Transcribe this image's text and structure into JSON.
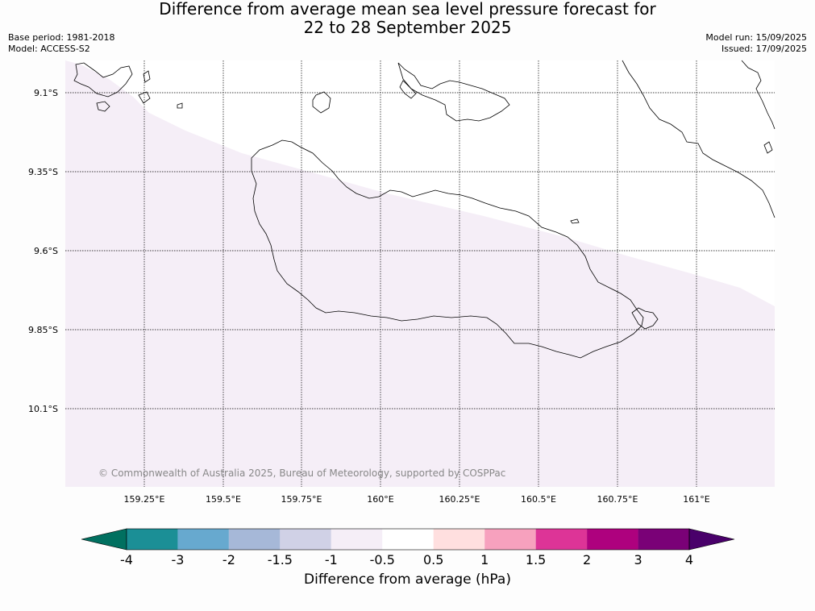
{
  "title": {
    "line1": "Difference from average mean sea level pressure forecast for",
    "line2": "22 to 28 September 2025"
  },
  "meta": {
    "base_period": "Base period: 1981-2018",
    "model": "Model: ACCESS-S2",
    "model_run": "Model run: 15/09/2025",
    "issued": "Issued: 17/09/2025"
  },
  "map": {
    "lat_labels": [
      "9.1°S",
      "9.35°S",
      "9.6°S",
      "9.85°S",
      "10.1°S"
    ],
    "lon_labels": [
      "159.25°E",
      "159.5°E",
      "159.75°E",
      "160°E",
      "160.25°E",
      "160.5°E",
      "160.75°E",
      "161°E"
    ],
    "shaded_category": "-0.5 to -1",
    "copyright": "© Commonwealth of Australia 2025, Bureau of Meteorology, supported by COSPPac"
  },
  "colorbar": {
    "ticks": [
      "-4",
      "-3",
      "-2",
      "-1.5",
      "-1",
      "-0.5",
      "0.5",
      "1",
      "1.5",
      "2",
      "3",
      "4"
    ],
    "colors": [
      "#1b8f96",
      "#67a9cf",
      "#a6b8d8",
      "#d0d1e6",
      "#f5eef7",
      "#ffffff",
      "#ffdfdf",
      "#f7a1be",
      "#dd3497",
      "#ae017e",
      "#7a0177"
    ],
    "under_color": "#017060",
    "over_color": "#49006a",
    "label": "Difference from average (hPa)"
  }
}
